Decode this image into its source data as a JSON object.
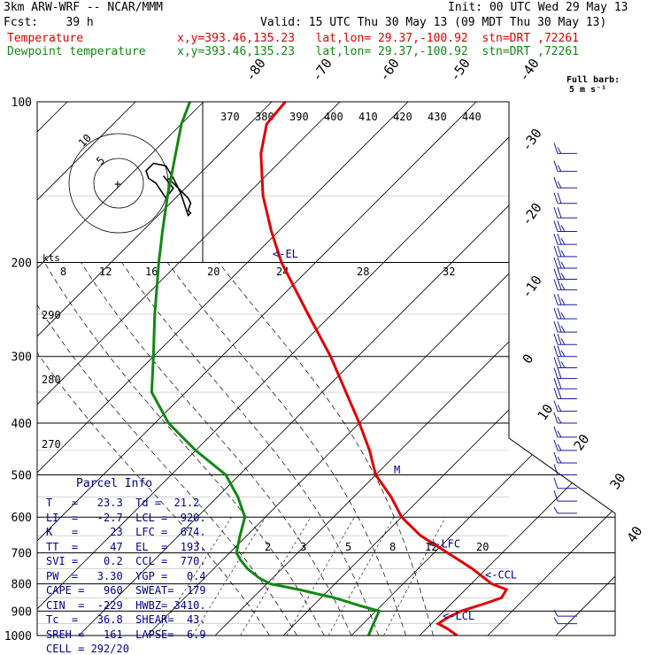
{
  "header": {
    "model": "3km ARW-WRF -- NCAR/MMM",
    "init": "Init: 00 UTC Wed 29 May 13",
    "fcst": "Fcst:    39 h",
    "valid": "Valid: 15 UTC Thu 30 May 13 (09 MDT Thu 30 May 13)",
    "temp_label": "Temperature",
    "dew_label": "Dewpoint temperature",
    "location": "x,y=393.46,135.23   lat,lon= 29.37,-100.92  stn=DRT ,72261"
  },
  "barb_legend": {
    "line1": "Full barb:",
    "line2": "5 m s⁻¹"
  },
  "chart_data": {
    "type": "line",
    "diagram": "skew-T log-p",
    "ylim_hPa": [
      1000,
      100
    ],
    "y_log_scale": true,
    "pressure_ticks": [
      100,
      200,
      300,
      400,
      500,
      600,
      700,
      800,
      900,
      1000
    ],
    "isotherm_labels": [
      -80,
      -70,
      -60,
      -50,
      -40,
      -30,
      -20,
      -10,
      0,
      10,
      20,
      30,
      40
    ],
    "theta_labels": [
      370,
      380,
      390,
      400,
      410,
      420,
      430,
      440
    ],
    "theta_left_labels": [
      290,
      280,
      270
    ],
    "mixing_ratio_top": [
      8,
      12,
      16,
      20,
      24,
      28,
      32
    ],
    "mixing_ratio_lower": [
      2,
      3,
      5,
      8,
      12,
      20
    ],
    "series": [
      {
        "name": "Temperature",
        "color": "#e00000",
        "points": [
          [
            1000,
            35.5
          ],
          [
            970,
            33.0
          ],
          [
            950,
            31.0
          ],
          [
            925,
            31.5
          ],
          [
            900,
            32.5
          ],
          [
            870,
            35.0
          ],
          [
            850,
            36.5
          ],
          [
            820,
            36.0
          ],
          [
            800,
            33.0
          ],
          [
            750,
            28.0
          ],
          [
            700,
            22.0
          ],
          [
            650,
            15.5
          ],
          [
            600,
            10.0
          ],
          [
            550,
            5.5
          ],
          [
            500,
            0.0
          ],
          [
            450,
            -4.5
          ],
          [
            400,
            -10.0
          ],
          [
            350,
            -16.5
          ],
          [
            300,
            -24.0
          ],
          [
            250,
            -33.5
          ],
          [
            200,
            -45.0
          ],
          [
            175,
            -51.0
          ],
          [
            150,
            -57.5
          ],
          [
            125,
            -64.0
          ],
          [
            110,
            -67.5
          ],
          [
            100,
            -68.0
          ]
        ]
      },
      {
        "name": "Dewpoint temperature",
        "color": "#118811",
        "points": [
          [
            1000,
            22.5
          ],
          [
            950,
            21.5
          ],
          [
            925,
            21.0
          ],
          [
            900,
            20.5
          ],
          [
            880,
            17.0
          ],
          [
            850,
            12.0
          ],
          [
            820,
            5.5
          ],
          [
            800,
            0.5
          ],
          [
            780,
            -2.0
          ],
          [
            750,
            -5.0
          ],
          [
            720,
            -7.5
          ],
          [
            700,
            -9.0
          ],
          [
            650,
            -11.0
          ],
          [
            600,
            -13.0
          ],
          [
            550,
            -17.0
          ],
          [
            500,
            -22.0
          ],
          [
            450,
            -30.0
          ],
          [
            400,
            -38.0
          ],
          [
            350,
            -45.0
          ],
          [
            300,
            -50.0
          ],
          [
            250,
            -56.0
          ],
          [
            220,
            -60.0
          ],
          [
            200,
            -63.0
          ],
          [
            175,
            -67.0
          ],
          [
            150,
            -71.5
          ],
          [
            125,
            -76.5
          ],
          [
            110,
            -80.0
          ],
          [
            100,
            -82.0
          ]
        ]
      }
    ],
    "annotations": [
      {
        "text": "<-EL",
        "p": 193
      },
      {
        "text": "<-LFC",
        "p": 674
      },
      {
        "text": "<-CCL",
        "p": 770
      },
      {
        "text": "<-LCL",
        "p": 920
      },
      {
        "text": "M",
        "p": 490
      }
    ],
    "hodograph": {
      "units": "kts",
      "ring_labels": [
        "5",
        "10"
      ],
      "ring_values": [
        10,
        20
      ],
      "points": [
        [
          4,
          2
        ],
        [
          8,
          -2
        ],
        [
          10,
          -4
        ],
        [
          12,
          -6
        ],
        [
          13,
          -8
        ],
        [
          12,
          -11
        ],
        [
          13,
          -12
        ],
        [
          12,
          -13
        ],
        [
          9,
          -4
        ],
        [
          6,
          2
        ],
        [
          3,
          7
        ],
        [
          -2,
          8
        ],
        [
          -5,
          5
        ],
        [
          -4,
          2
        ],
        [
          -1,
          0
        ],
        [
          3,
          -6
        ],
        [
          6,
          -2
        ],
        [
          2,
          3
        ]
      ]
    },
    "wind_barbs": [
      {
        "p": 125,
        "speed_ms": 15
      },
      {
        "p": 135,
        "speed_ms": 15
      },
      {
        "p": 145,
        "speed_ms": 15
      },
      {
        "p": 155,
        "speed_ms": 20
      },
      {
        "p": 165,
        "speed_ms": 20
      },
      {
        "p": 175,
        "speed_ms": 25
      },
      {
        "p": 185,
        "speed_ms": 25
      },
      {
        "p": 195,
        "speed_ms": 25
      },
      {
        "p": 205,
        "speed_ms": 25
      },
      {
        "p": 215,
        "speed_ms": 25
      },
      {
        "p": 225,
        "speed_ms": 25
      },
      {
        "p": 240,
        "speed_ms": 25
      },
      {
        "p": 255,
        "speed_ms": 25
      },
      {
        "p": 270,
        "speed_ms": 25
      },
      {
        "p": 285,
        "speed_ms": 25
      },
      {
        "p": 300,
        "speed_ms": 25
      },
      {
        "p": 315,
        "speed_ms": 25
      },
      {
        "p": 330,
        "speed_ms": 20
      },
      {
        "p": 345,
        "speed_ms": 20
      },
      {
        "p": 360,
        "speed_ms": 20
      },
      {
        "p": 380,
        "speed_ms": 15
      },
      {
        "p": 400,
        "speed_ms": 15
      },
      {
        "p": 425,
        "speed_ms": 15
      },
      {
        "p": 450,
        "speed_ms": 15
      },
      {
        "p": 475,
        "speed_ms": 15
      },
      {
        "p": 500,
        "speed_ms": 10
      },
      {
        "p": 530,
        "speed_ms": 10
      },
      {
        "p": 560,
        "speed_ms": 10
      },
      {
        "p": 590,
        "speed_ms": 5
      },
      {
        "p": 920,
        "speed_ms": 5
      },
      {
        "p": 950,
        "speed_ms": 5
      }
    ]
  },
  "parcel_info": {
    "title": "Parcel Info",
    "rows": [
      "T   =   23.3  Td =  21.2",
      "LI  =   -2.7  LCL =  920.",
      "K   =     23  LFC =  674.",
      "TT  =     47  EL  =  193.",
      "SVI =    0.2  CCL =  770.",
      "PW  =   3.30  YGP =   0.4",
      "CAPE =   960  SWEAT=  179",
      "CIN  =  -229  HWBZ= 3410.",
      "Tc  =   36.8  SHEAR=  43.",
      "SREH =   161  LAPSE=  6.9",
      "CELL = 292/20"
    ]
  },
  "colors": {
    "temperature": "#e00000",
    "dewpoint": "#118811",
    "grid": "#000000",
    "barbs": "#1a1aa0",
    "annotations": "#00008b"
  }
}
